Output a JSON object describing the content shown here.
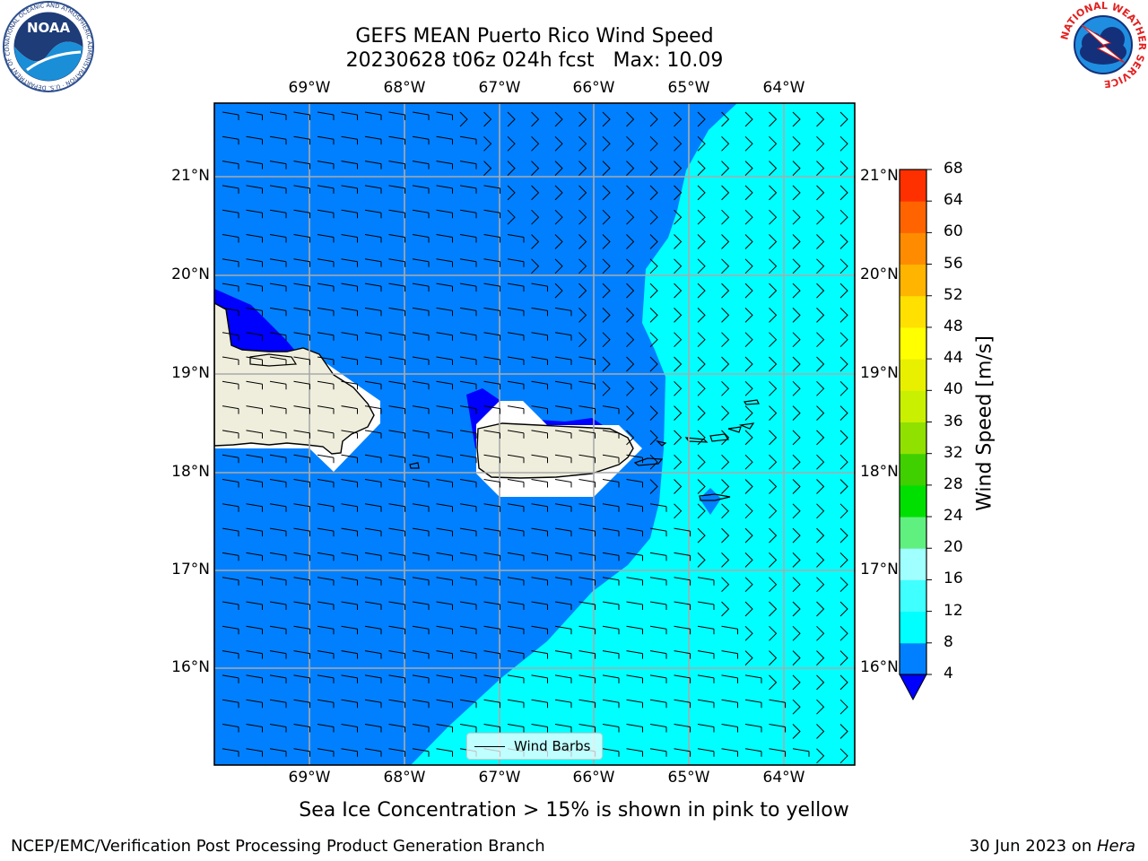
{
  "header": {
    "title_line1": "GEFS MEAN Puerto Rico Wind Speed",
    "title_line2": "20230628 t06z 024h fcst   Max: 10.09"
  },
  "map": {
    "lon_labels": [
      "69°W",
      "68°W",
      "67°W",
      "66°W",
      "65°W",
      "64°W"
    ],
    "lat_labels": [
      "21°N",
      "20°N",
      "19°N",
      "18°N",
      "17°N",
      "16°N"
    ],
    "legend_label": "Wind Barbs",
    "land_color": "#efeedc",
    "ocean_band_colors": [
      "#0000ff",
      "#0080ff",
      "#00ffff"
    ]
  },
  "colorbar": {
    "label": "Wind Speed [m/s]",
    "ticks": [
      "4",
      "8",
      "12",
      "16",
      "20",
      "24",
      "28",
      "32",
      "36",
      "40",
      "44",
      "48",
      "52",
      "56",
      "60",
      "64",
      "68"
    ],
    "colors": [
      "#0080ff",
      "#00ffff",
      "#40ffff",
      "#a0ffff",
      "#60f080",
      "#00e000",
      "#40d000",
      "#90e000",
      "#c8f000",
      "#e8f000",
      "#ffff00",
      "#ffe000",
      "#ffb400",
      "#ff8c00",
      "#ff6400",
      "#ff3000",
      "#ff0000"
    ],
    "under_color": "#0000ff"
  },
  "footer": {
    "note": "Sea Ice Concentration > 15% is shown in pink to yellow",
    "left_credit": "NCEP/EMC/Verification Post Processing Product Generation Branch",
    "right_credit_date": "30 Jun 2023 on ",
    "right_credit_host": "Hera"
  },
  "logos": {
    "noaa": "NOAA",
    "noaa_ring": "NATIONAL OCEANIC AND ATMOSPHERIC ADMINISTRATION · U.S. DEPARTMENT OF COMMERCE",
    "nws_ring": "NATIONAL WEATHER SERVICE"
  }
}
